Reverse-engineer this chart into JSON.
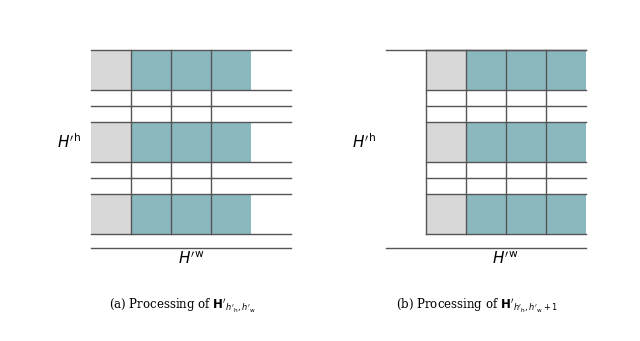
{
  "fig_width": 6.4,
  "fig_height": 3.41,
  "dpi": 100,
  "bg_color": "#ffffff",
  "teal_color": "#8ab8bf",
  "gray_color": "#d8d8d8",
  "line_color": "#555555",
  "ylabel_a": "$H'^{\\mathrm{h}}$",
  "xlabel_a": "$H'^{\\mathrm{w}}$",
  "ylabel_b": "$H'^{\\mathrm{h}}$",
  "xlabel_b": "$H'^{\\mathrm{w}}$"
}
